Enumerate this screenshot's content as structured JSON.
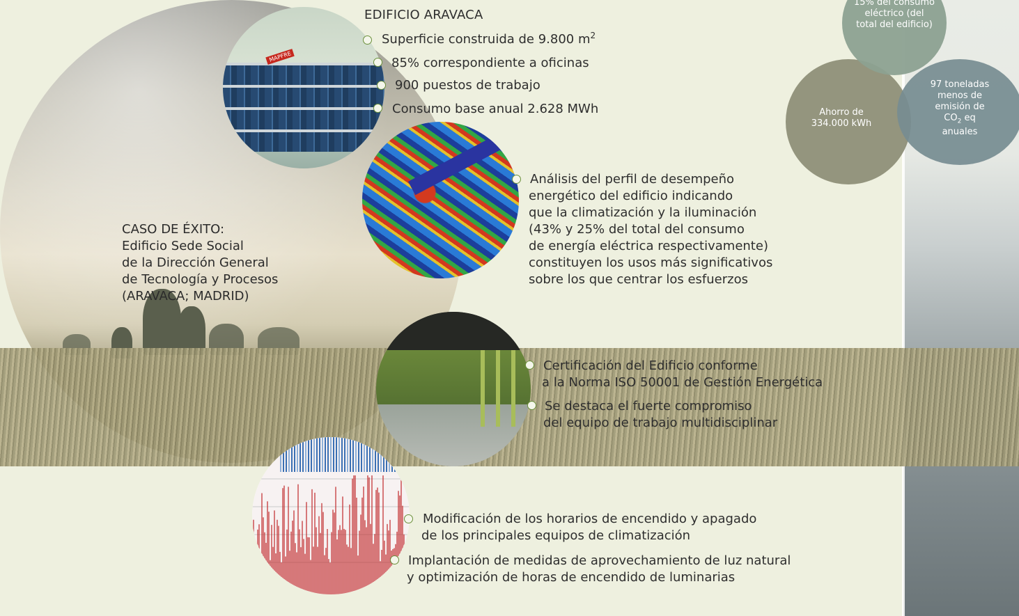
{
  "header": {
    "title": "EDIFICIO ARAVACA"
  },
  "building_facts": [
    {
      "text": "Superficie construida de 9.800 m",
      "sup": "2"
    },
    {
      "text": "85% correspondiente a oficinas",
      "sup": ""
    },
    {
      "text": "900 puestos de trabajo",
      "sup": ""
    },
    {
      "text": "Consumo base anual 2.628 MWh",
      "sup": ""
    }
  ],
  "case_study": {
    "text": "CASO DE ÉXITO:\nEdificio Sede Social\nde la Dirección General\nde Tecnología y Procesos\n(ARAVACA; MADRID)"
  },
  "analysis": {
    "lines": [
      "Análisis del perfil de desempeño",
      "energético del edificio indicando",
      "que la climatización y la iluminación",
      "(43% y 25% del total del consumo",
      "de energía eléctrica respectivamente)",
      "constituyen los usos más significativos",
      "sobre los que centrar los esfuerzos"
    ]
  },
  "certification": {
    "items": [
      {
        "line1": "Certificación del Edificio conforme",
        "line2": "a la Norma ISO 50001 de Gestión Energética"
      },
      {
        "line1": "Se destaca el fuerte compromiso",
        "line2": "del equipo de trabajo multidisciplinar"
      }
    ]
  },
  "measures": {
    "items": [
      {
        "line1": "Modificación de los horarios de encendido y apagado",
        "line2": "de los principales equipos de climatización"
      },
      {
        "line1": "Implantación de medidas de aprovechamiento de luz natural",
        "line2": "y optimización de horas de encendido de luminarias"
      }
    ]
  },
  "savings": {
    "top_lines": [
      "15% del consumo",
      "eléctrico (del",
      "total del edificio)"
    ],
    "left_lines": [
      "Ahorro de",
      "334.000 kWh"
    ],
    "right_lines": [
      "97 toneladas",
      "menos de",
      "emisión de"
    ],
    "co2_base": "CO",
    "co2_sub": "2",
    "co2_suffix": " eq",
    "right_last": "anuales"
  },
  "photo_logo": "MAPFRE",
  "colors": {
    "background": "#eef0df",
    "bullet_ring": "#6a8f3a",
    "venn_top": "#8ca191",
    "venn_left": "#8e8f78",
    "venn_right": "#768c91"
  }
}
